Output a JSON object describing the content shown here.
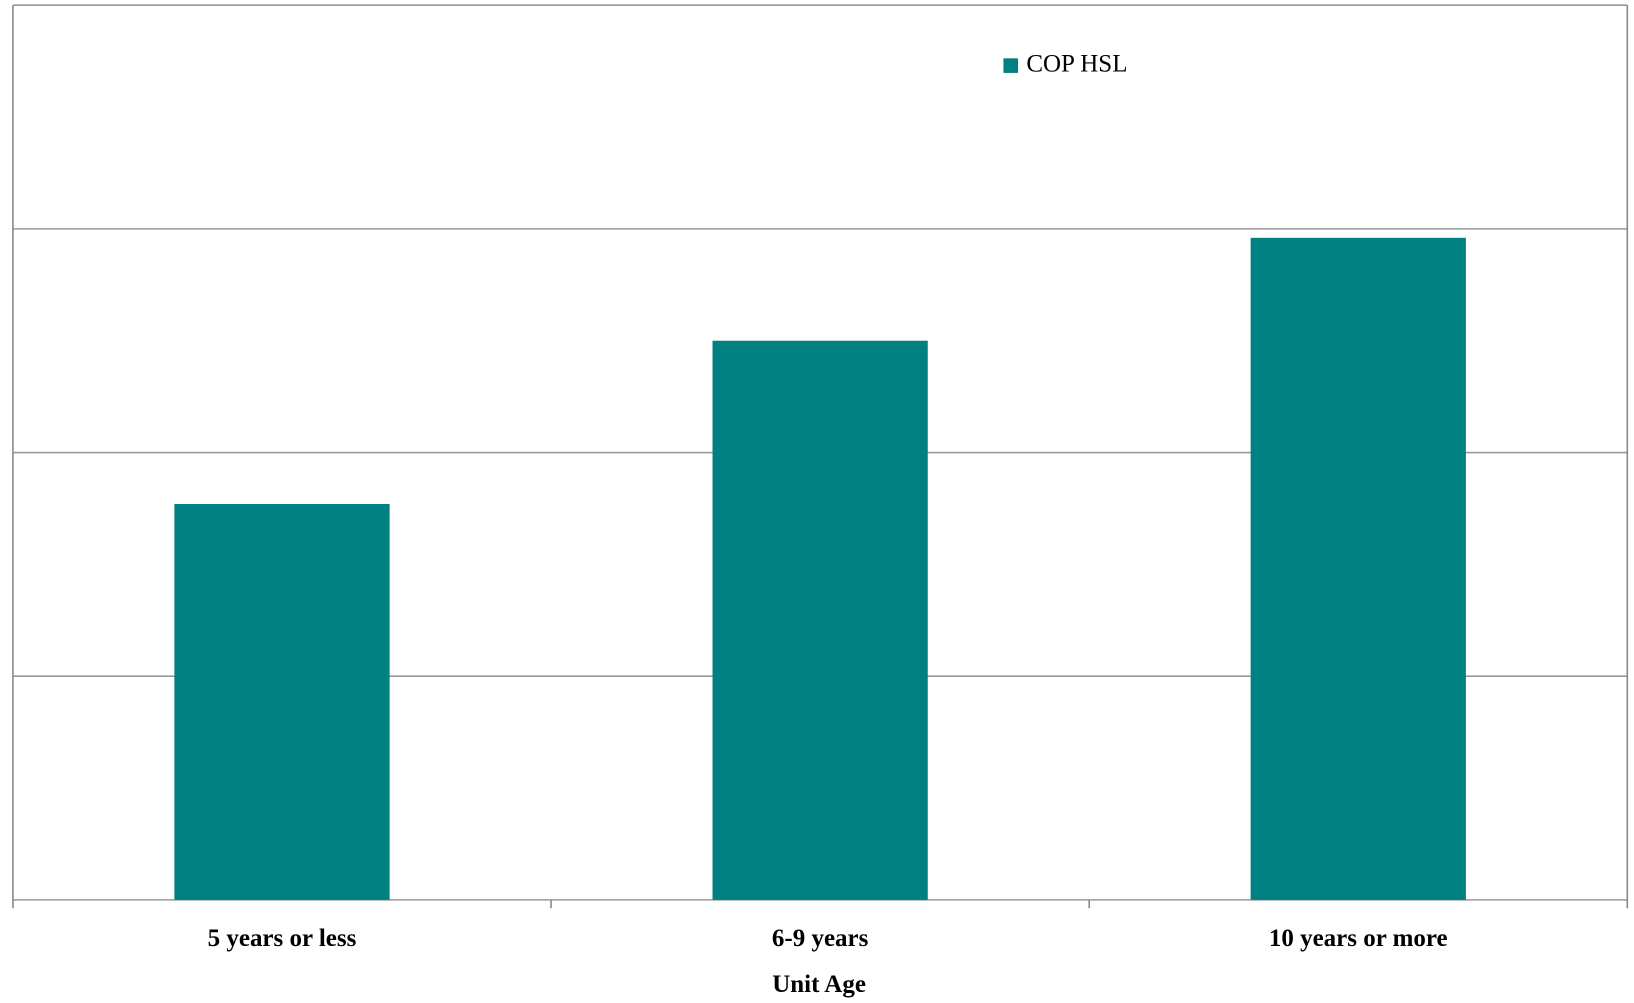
{
  "chart_data": {
    "type": "bar",
    "x_label": "Unit Age",
    "categories": [
      "5 years or less",
      "6-9 years",
      "10 years or more"
    ],
    "series": [
      {
        "name": "COP HSL",
        "color": "#008080",
        "values": [
          1.77,
          2.5,
          2.96
        ]
      }
    ],
    "ylim": [
      0,
      4
    ],
    "yticks": [
      0,
      1,
      2,
      3,
      4
    ],
    "grid": true,
    "legend": "top-right"
  }
}
